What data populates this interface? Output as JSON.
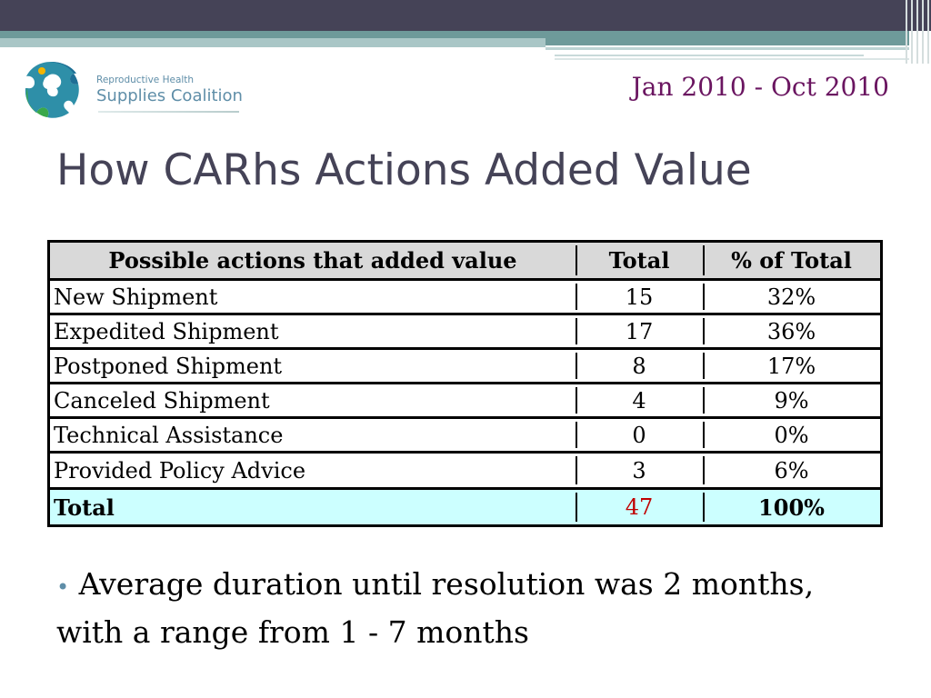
{
  "header": {
    "logo_line1": "Reproductive Health",
    "logo_line2": "Supplies Coalition",
    "date_range": "Jan 2010 - Oct 2010"
  },
  "title": "How CARhs Actions Added Value",
  "colors": {
    "title": "#454357",
    "date": "#6a1560",
    "header_band": "#454357",
    "teal_band": "#6e9a9a",
    "table_header_bg": "#d9d9d9",
    "table_total_bg": "#ccffff",
    "total_value": "#c00000"
  },
  "table": {
    "headers": [
      "Possible actions that added value",
      "Total",
      "% of Total"
    ],
    "rows": [
      {
        "action": "New Shipment",
        "total": "15",
        "pct": "32%"
      },
      {
        "action": "Expedited Shipment",
        "total": "17",
        "pct": "36%"
      },
      {
        "action": "Postponed Shipment",
        "total": "8",
        "pct": "17%"
      },
      {
        "action": "Canceled Shipment",
        "total": "4",
        "pct": "9%"
      },
      {
        "action": "Technical Assistance",
        "total": "0",
        "pct": "0%"
      },
      {
        "action": "Provided Policy Advice",
        "total": "3",
        "pct": "6%"
      }
    ],
    "footer": {
      "label": "Total",
      "total": "47",
      "pct": "100%"
    }
  },
  "bullet": {
    "marker": "•",
    "text": "Average duration until resolution was 2 months, with a range from 1 - 7 months"
  }
}
